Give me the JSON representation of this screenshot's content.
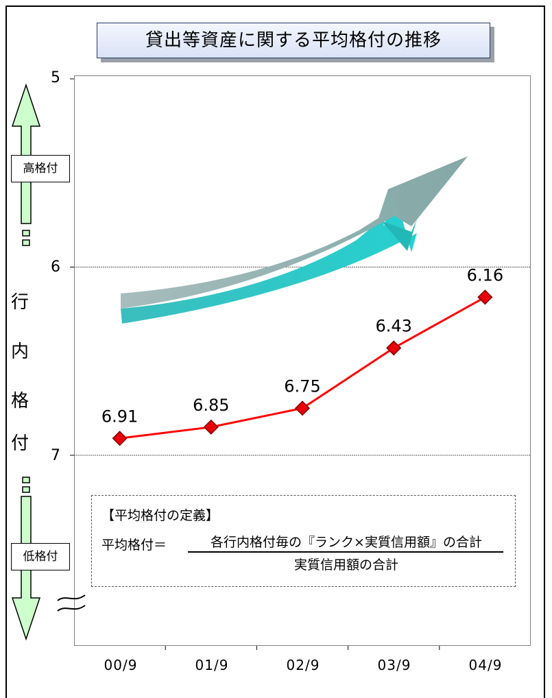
{
  "chart_data": {
    "type": "line",
    "title": "貸出等資産に関する平均格付の推移",
    "categories": [
      "00/9",
      "01/9",
      "02/9",
      "03/9",
      "04/9"
    ],
    "series": [
      {
        "values": [
          6.91,
          6.85,
          6.75,
          6.43,
          6.16
        ],
        "color": "#ff0000",
        "marker": "diamond"
      }
    ],
    "data_labels": [
      "6.91",
      "6.85",
      "6.75",
      "6.43",
      "6.16"
    ],
    "y_ticks": [
      "5",
      "6",
      "7"
    ],
    "y_axis_inverted": true,
    "ylabel": "行内格付",
    "gridlines_at": [
      6,
      7
    ],
    "axis_break": true
  },
  "side_scale": {
    "vertical_label": [
      "行",
      "内",
      "格",
      "付"
    ],
    "high_label": "高格付",
    "low_label": "低格付"
  },
  "definition_box": {
    "heading": "【平均格付の定義】",
    "lhs": "平均格付＝",
    "numerator": "各行内格付毎の『ランク×実質信用額』の合計",
    "denominator": "実質信用額の合計"
  },
  "colors": {
    "series_line": "#ff0000",
    "marker_fill": "#e8000a",
    "arrow_teal": "#2ec4c4",
    "arrow_gray": "#8fb3b3",
    "scale_arrow_fill": "#ccffcc"
  }
}
